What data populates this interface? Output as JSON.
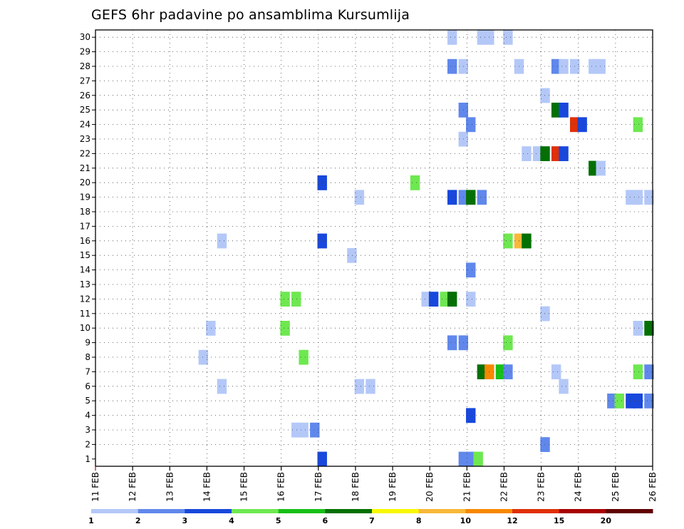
{
  "chart_data": {
    "type": "heatmap",
    "title": "GEFS 6hr padavine po ansamblima Kursumlija",
    "xlabel": "",
    "ylabel": "",
    "x_tick_labels": [
      "11 FEB",
      "12 FEB",
      "13 FEB",
      "14 FEB",
      "15 FEB",
      "16 FEB",
      "17 FEB",
      "18 FEB",
      "19 FEB",
      "20 FEB",
      "21 FEB",
      "22 FEB",
      "23 FEB",
      "24 FEB",
      "25 FEB",
      "26 FEB"
    ],
    "y_tick_labels": [
      "1",
      "2",
      "3",
      "4",
      "5",
      "6",
      "7",
      "8",
      "9",
      "10",
      "11",
      "12",
      "13",
      "14",
      "15",
      "16",
      "17",
      "18",
      "19",
      "20",
      "21",
      "22",
      "23",
      "24",
      "25",
      "26",
      "27",
      "28",
      "29",
      "30"
    ],
    "xlim_days": [
      11,
      26
    ],
    "ylim": [
      0,
      30
    ],
    "steps_per_day": 4,
    "grid": true,
    "legend_placement": "bottom",
    "levels": [
      "1",
      "2",
      "3",
      "4",
      "5",
      "6",
      "7",
      "8",
      "10",
      "12",
      "15",
      "20"
    ],
    "level_colors": [
      "#b4c8f8",
      "#6088ec",
      "#1848dc",
      "#6ee850",
      "#18c018",
      "#047004",
      "#f8f800",
      "#f8b838",
      "#f88800",
      "#e03008",
      "#a80000",
      "#600000"
    ],
    "cells": [
      {
        "member": 0,
        "day": 17.1,
        "level": 3
      },
      {
        "member": 0,
        "day": 20.9,
        "level": 2
      },
      {
        "member": 0,
        "day": 21.1,
        "level": 2
      },
      {
        "member": 0,
        "day": 21.3,
        "level": 4
      },
      {
        "member": 1,
        "day": 23.1,
        "level": 2
      },
      {
        "member": 2,
        "day": 16.4,
        "level": 1
      },
      {
        "member": 2,
        "day": 16.6,
        "level": 1
      },
      {
        "member": 2,
        "day": 16.9,
        "level": 2
      },
      {
        "member": 3,
        "day": 21.1,
        "level": 3
      },
      {
        "member": 4,
        "day": 24.9,
        "level": 2
      },
      {
        "member": 4,
        "day": 25.1,
        "level": 4
      },
      {
        "member": 4,
        "day": 25.4,
        "level": 3
      },
      {
        "member": 4,
        "day": 25.6,
        "level": 3
      },
      {
        "member": 4,
        "day": 25.9,
        "level": 2
      },
      {
        "member": 5,
        "day": 14.4,
        "level": 1
      },
      {
        "member": 5,
        "day": 18.1,
        "level": 1
      },
      {
        "member": 5,
        "day": 18.4,
        "level": 1
      },
      {
        "member": 5,
        "day": 23.6,
        "level": 1
      },
      {
        "member": 6,
        "day": 21.4,
        "level": 6
      },
      {
        "member": 6,
        "day": 21.6,
        "level": 10
      },
      {
        "member": 6,
        "day": 21.9,
        "level": 5
      },
      {
        "member": 6,
        "day": 22.1,
        "level": 2
      },
      {
        "member": 6,
        "day": 23.4,
        "level": 1
      },
      {
        "member": 6,
        "day": 25.6,
        "level": 4
      },
      {
        "member": 6,
        "day": 25.9,
        "level": 2
      },
      {
        "member": 7,
        "day": 13.9,
        "level": 1
      },
      {
        "member": 7,
        "day": 16.6,
        "level": 4
      },
      {
        "member": 8,
        "day": 20.6,
        "level": 2
      },
      {
        "member": 8,
        "day": 20.9,
        "level": 2
      },
      {
        "member": 8,
        "day": 22.1,
        "level": 4
      },
      {
        "member": 9,
        "day": 14.1,
        "level": 1
      },
      {
        "member": 9,
        "day": 16.1,
        "level": 4
      },
      {
        "member": 9,
        "day": 25.6,
        "level": 1
      },
      {
        "member": 9,
        "day": 25.9,
        "level": 6
      },
      {
        "member": 10,
        "day": 23.1,
        "level": 1
      },
      {
        "member": 11,
        "day": 16.1,
        "level": 4
      },
      {
        "member": 11,
        "day": 16.4,
        "level": 4
      },
      {
        "member": 11,
        "day": 19.9,
        "level": 1
      },
      {
        "member": 11,
        "day": 20.1,
        "level": 3
      },
      {
        "member": 11,
        "day": 20.4,
        "level": 4
      },
      {
        "member": 11,
        "day": 20.6,
        "level": 6
      },
      {
        "member": 11,
        "day": 21.1,
        "level": 1
      },
      {
        "member": 13,
        "day": 21.1,
        "level": 2
      },
      {
        "member": 14,
        "day": 17.9,
        "level": 1
      },
      {
        "member": 15,
        "day": 14.4,
        "level": 1
      },
      {
        "member": 15,
        "day": 17.1,
        "level": 3
      },
      {
        "member": 15,
        "day": 22.1,
        "level": 4
      },
      {
        "member": 15,
        "day": 22.4,
        "level": 8
      },
      {
        "member": 15,
        "day": 22.6,
        "level": 6
      },
      {
        "member": 18,
        "day": 18.1,
        "level": 1
      },
      {
        "member": 18,
        "day": 20.6,
        "level": 3
      },
      {
        "member": 18,
        "day": 20.9,
        "level": 2
      },
      {
        "member": 18,
        "day": 21.1,
        "level": 6
      },
      {
        "member": 18,
        "day": 21.4,
        "level": 2
      },
      {
        "member": 18,
        "day": 25.4,
        "level": 1
      },
      {
        "member": 18,
        "day": 25.6,
        "level": 1
      },
      {
        "member": 18,
        "day": 25.9,
        "level": 1
      },
      {
        "member": 19,
        "day": 17.1,
        "level": 3
      },
      {
        "member": 19,
        "day": 19.6,
        "level": 4
      },
      {
        "member": 20,
        "day": 24.4,
        "level": 6
      },
      {
        "member": 20,
        "day": 24.6,
        "level": 1
      },
      {
        "member": 21,
        "day": 22.6,
        "level": 1
      },
      {
        "member": 21,
        "day": 22.9,
        "level": 1
      },
      {
        "member": 21,
        "day": 23.1,
        "level": 6
      },
      {
        "member": 21,
        "day": 23.4,
        "level": 12
      },
      {
        "member": 21,
        "day": 23.6,
        "level": 3
      },
      {
        "member": 22,
        "day": 20.9,
        "level": 1
      },
      {
        "member": 23,
        "day": 21.1,
        "level": 2
      },
      {
        "member": 23,
        "day": 23.9,
        "level": 12
      },
      {
        "member": 23,
        "day": 24.1,
        "level": 3
      },
      {
        "member": 23,
        "day": 25.6,
        "level": 4
      },
      {
        "member": 24,
        "day": 20.9,
        "level": 2
      },
      {
        "member": 24,
        "day": 23.4,
        "level": 6
      },
      {
        "member": 24,
        "day": 23.6,
        "level": 3
      },
      {
        "member": 25,
        "day": 23.1,
        "level": 1
      },
      {
        "member": 27,
        "day": 20.6,
        "level": 2
      },
      {
        "member": 27,
        "day": 20.9,
        "level": 1
      },
      {
        "member": 27,
        "day": 22.4,
        "level": 1
      },
      {
        "member": 27,
        "day": 23.4,
        "level": 2
      },
      {
        "member": 27,
        "day": 23.6,
        "level": 1
      },
      {
        "member": 27,
        "day": 23.9,
        "level": 1
      },
      {
        "member": 27,
        "day": 24.4,
        "level": 1
      },
      {
        "member": 27,
        "day": 24.6,
        "level": 1
      },
      {
        "member": 29,
        "day": 20.6,
        "level": 1
      },
      {
        "member": 29,
        "day": 21.4,
        "level": 1
      },
      {
        "member": 29,
        "day": 21.6,
        "level": 1
      },
      {
        "member": 29,
        "day": 22.1,
        "level": 1
      }
    ]
  }
}
